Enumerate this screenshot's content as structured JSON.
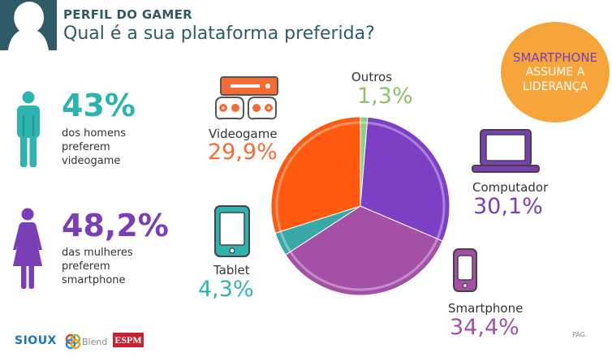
{
  "header": {
    "kicker": "PERFIL DO GAMER",
    "question": "Qual é a sua plataforma preferida?"
  },
  "callout": {
    "line1": "SMARTPHONE",
    "line2": "ASSUME A",
    "line3": "LIDERANÇA"
  },
  "stats": {
    "men": {
      "value": "43%",
      "lines": [
        "dos homens",
        "preferem",
        "videogame"
      ]
    },
    "women": {
      "value": "48,2%",
      "lines": [
        "das mulheres",
        "preferem",
        "smartphone"
      ]
    }
  },
  "chart_data": {
    "type": "pie",
    "slices": [
      {
        "label": "Outros",
        "value": 1.3,
        "display": "1,3%",
        "color": "#8ed08a"
      },
      {
        "label": "Computador",
        "value": 30.1,
        "display": "30,1%",
        "color": "#7d3fc4"
      },
      {
        "label": "Smartphone",
        "value": 34.4,
        "display": "34,4%",
        "color": "#a450a6"
      },
      {
        "label": "Tablet",
        "value": 4.3,
        "display": "4,3%",
        "color": "#3aa8a8"
      },
      {
        "label": "Videogame",
        "value": 29.9,
        "display": "29,9%",
        "color": "#ff5a10"
      }
    ]
  },
  "colors": {
    "teal_dark": "#2f5a66",
    "teal": "#2fb3b0",
    "purple": "#7b3fb5",
    "orange": "#f56b35",
    "green": "#8ec26a",
    "accent_orange": "#f6a53a"
  },
  "icons": {
    "header": "person-head-icon",
    "men": "man-icon",
    "women": "woman-icon",
    "videogame": "game-console-icon",
    "computer": "laptop-icon",
    "tablet": "tablet-icon",
    "smartphone": "smartphone-icon"
  },
  "footer": {
    "logos": [
      "SIOUX",
      "Blend",
      "ESPM"
    ],
    "page_label": "PÁG."
  }
}
